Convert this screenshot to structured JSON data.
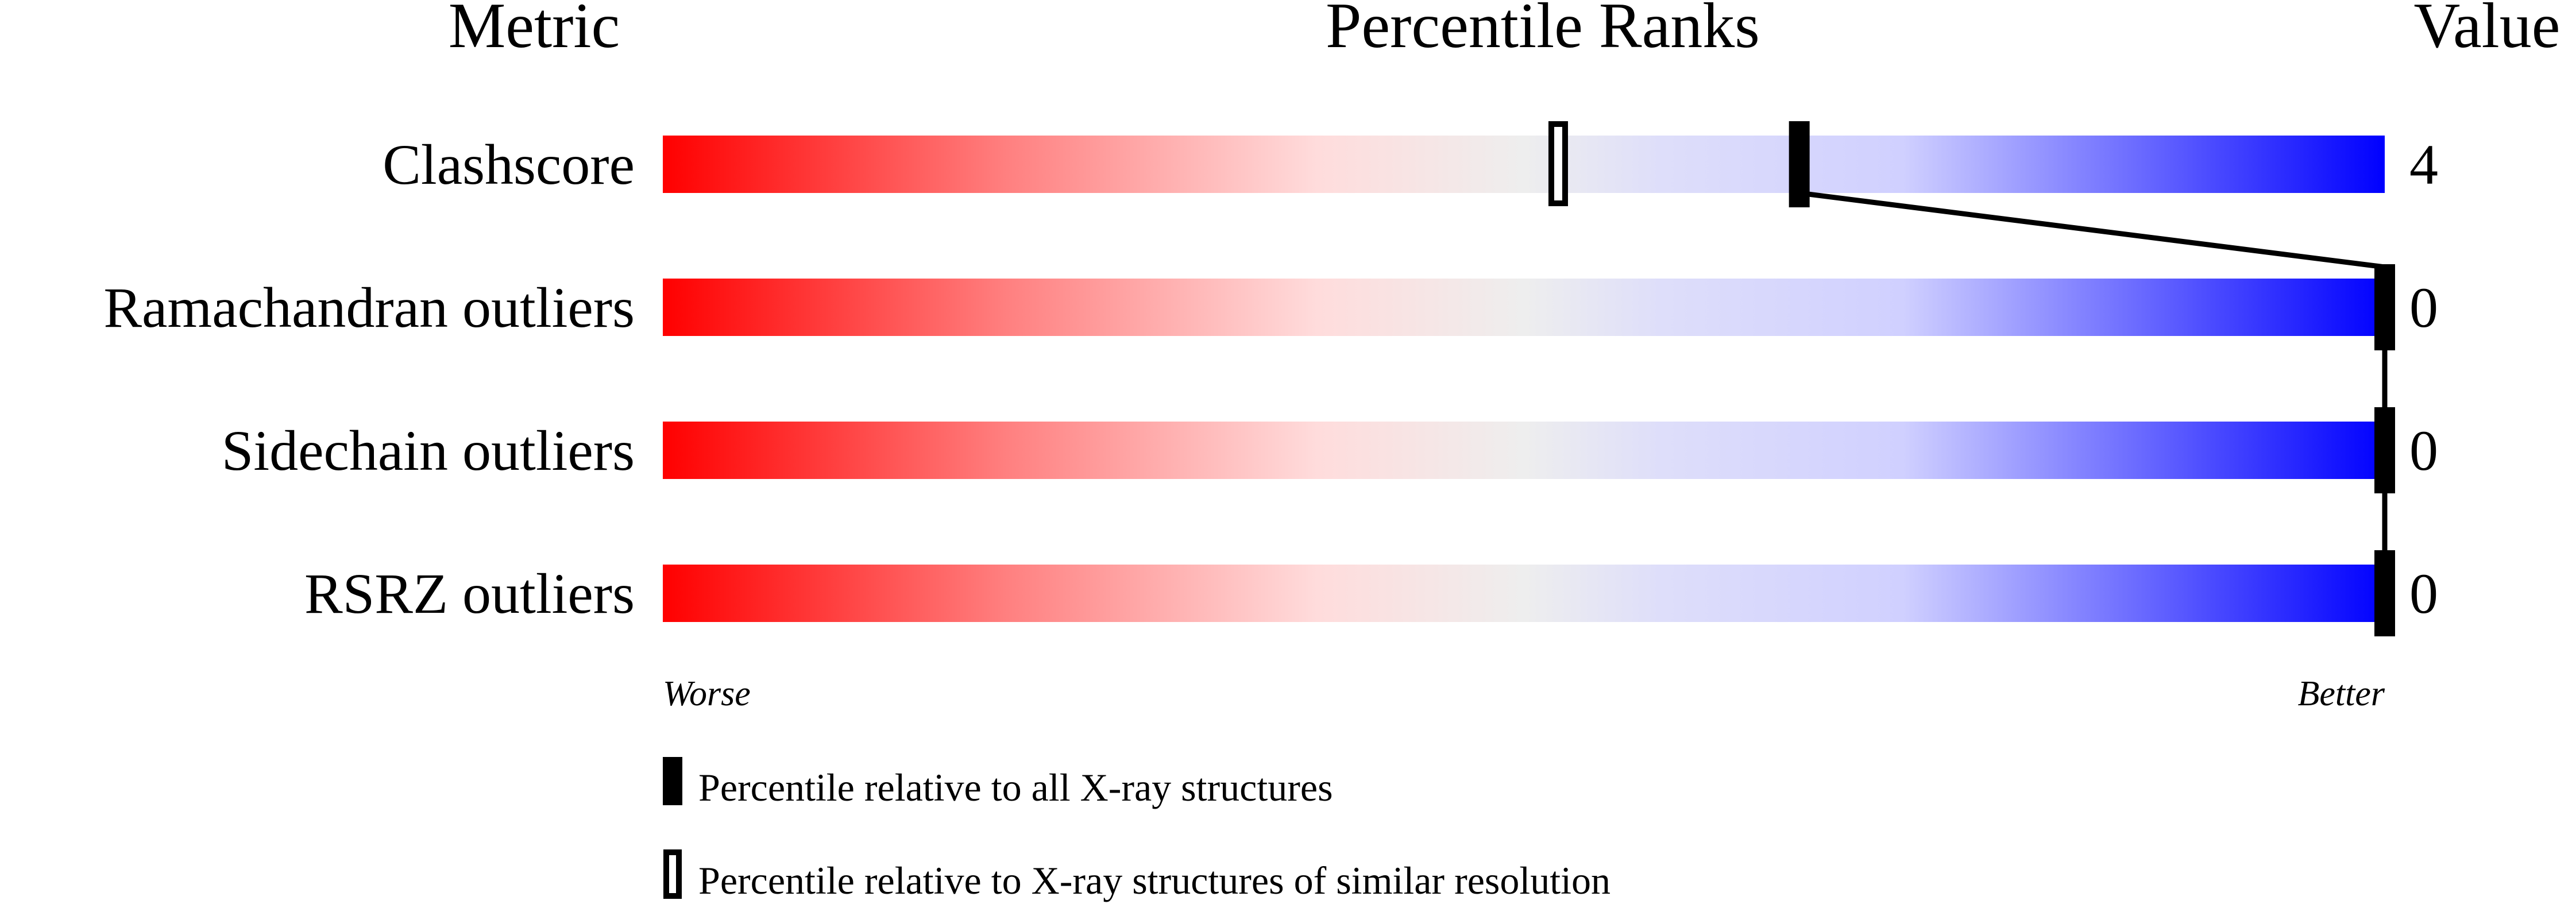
{
  "chart_data": {
    "type": "percentile-slider",
    "headers": {
      "metric": "Metric",
      "ranks": "Percentile Ranks",
      "value": "Value"
    },
    "xlim": [
      0,
      100
    ],
    "axis_left_label": "Worse",
    "axis_right_label": "Better",
    "gradient_colors": [
      "#ff0000",
      "#ff8080",
      "#ffdcdc",
      "#eeeeee",
      "#dedefa",
      "#d0d0ff",
      "#0000ff"
    ],
    "rows": [
      {
        "metric": "Clashscore",
        "value": "4",
        "percentile_all": 66,
        "percentile_similar": 52
      },
      {
        "metric": "Ramachandran outliers",
        "value": "0",
        "percentile_all": 100,
        "percentile_similar": null
      },
      {
        "metric": "Sidechain outliers",
        "value": "0",
        "percentile_all": 100,
        "percentile_similar": null
      },
      {
        "metric": "RSRZ outliers",
        "value": "0",
        "percentile_all": 100,
        "percentile_similar": null
      }
    ],
    "legend": [
      {
        "marker": "filled",
        "label": "Percentile relative to all X-ray structures"
      },
      {
        "marker": "open",
        "label": "Percentile relative to X-ray structures of similar resolution"
      }
    ]
  }
}
